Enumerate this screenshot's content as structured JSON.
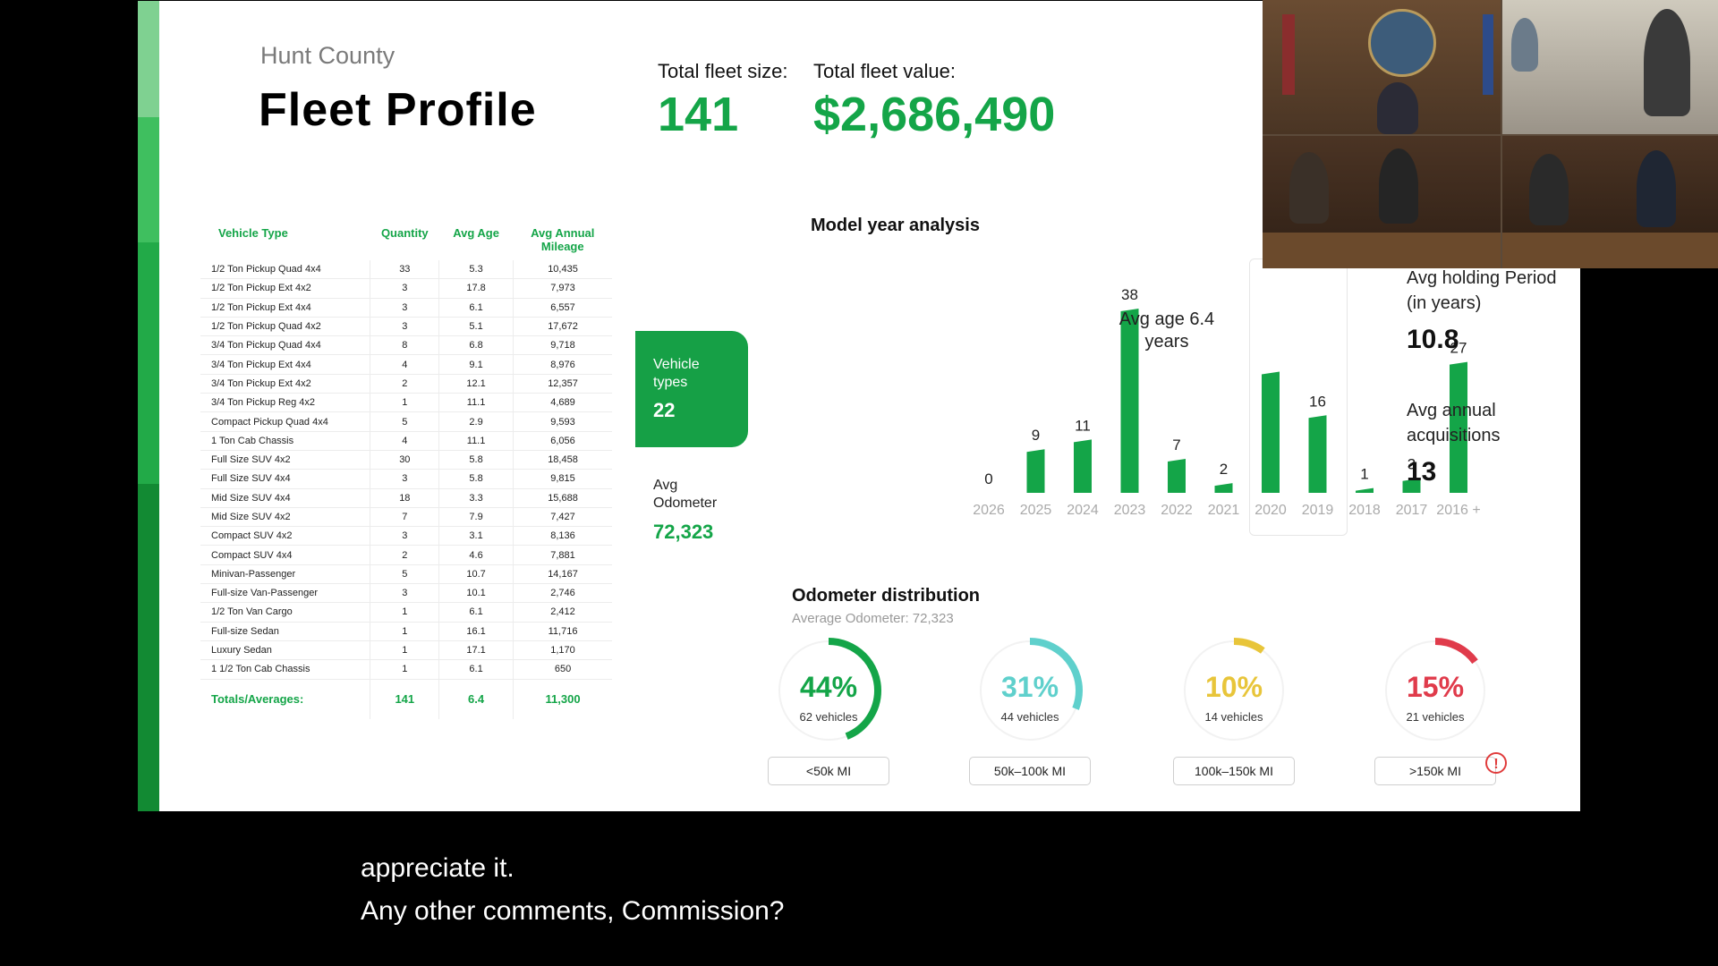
{
  "slide": {
    "county": "Hunt County",
    "title": "Fleet Profile",
    "fleet_size_label": "Total fleet size:",
    "fleet_size_value": "141",
    "fleet_value_label": "Total fleet value:",
    "fleet_value_value": "$2,686,490"
  },
  "table": {
    "headers": [
      "Vehicle Type",
      "Quantity",
      "Avg Age",
      "Avg Annual Mileage"
    ],
    "rows": [
      [
        "1/2 Ton Pickup Quad 4x4",
        "33",
        "5.3",
        "10,435"
      ],
      [
        "1/2 Ton Pickup Ext 4x2",
        "3",
        "17.8",
        "7,973"
      ],
      [
        "1/2 Ton Pickup Ext 4x4",
        "3",
        "6.1",
        "6,557"
      ],
      [
        "1/2 Ton Pickup Quad 4x2",
        "3",
        "5.1",
        "17,672"
      ],
      [
        "3/4 Ton Pickup Quad 4x4",
        "8",
        "6.8",
        "9,718"
      ],
      [
        "3/4 Ton Pickup Ext 4x4",
        "4",
        "9.1",
        "8,976"
      ],
      [
        "3/4 Ton Pickup Ext 4x2",
        "2",
        "12.1",
        "12,357"
      ],
      [
        "3/4 Ton Pickup Reg 4x2",
        "1",
        "11.1",
        "4,689"
      ],
      [
        "Compact Pickup Quad 4x4",
        "5",
        "2.9",
        "9,593"
      ],
      [
        "1 Ton Cab Chassis",
        "4",
        "11.1",
        "6,056"
      ],
      [
        "Full Size SUV 4x2",
        "30",
        "5.8",
        "18,458"
      ],
      [
        "Full Size SUV 4x4",
        "3",
        "5.8",
        "9,815"
      ],
      [
        "Mid Size SUV 4x4",
        "18",
        "3.3",
        "15,688"
      ],
      [
        "Mid Size SUV 4x2",
        "7",
        "7.9",
        "7,427"
      ],
      [
        "Compact SUV 4x2",
        "3",
        "3.1",
        "8,136"
      ],
      [
        "Compact SUV 4x4",
        "2",
        "4.6",
        "7,881"
      ],
      [
        "Minivan-Passenger",
        "5",
        "10.7",
        "14,167"
      ],
      [
        "Full-size Van-Passenger",
        "3",
        "10.1",
        "2,746"
      ],
      [
        "1/2 Ton Van Cargo",
        "1",
        "6.1",
        "2,412"
      ],
      [
        "Full-size Sedan",
        "1",
        "16.1",
        "11,716"
      ],
      [
        "Luxury Sedan",
        "1",
        "17.1",
        "1,170"
      ],
      [
        "1 1/2 Ton Cab Chassis",
        "1",
        "6.1",
        "650"
      ]
    ],
    "totals": [
      "Totals/Averages:",
      "141",
      "6.4",
      "11,300"
    ]
  },
  "stats": {
    "vehicle_types_label": "Vehicle types",
    "vehicle_types_value": "22",
    "avg_odometer_label": "Avg Odometer",
    "avg_odometer_value": "72,323",
    "holding_label": "Avg holding Period (in years)",
    "holding_value": "10.8",
    "acquisitions_label": "Avg annual acquisitions",
    "acquisitions_value": "13",
    "avg_age_label": "Avg age 6.4 years"
  },
  "chart_data": {
    "type": "bar",
    "title": "Model year analysis",
    "categories": [
      "2026",
      "2025",
      "2024",
      "2023",
      "2022",
      "2021",
      "2020",
      "2019",
      "2018",
      "2017",
      "2016 +"
    ],
    "values": [
      0,
      9,
      11,
      38,
      7,
      2,
      25,
      16,
      1,
      3,
      27
    ],
    "labels": [
      "0",
      "9",
      "11",
      "38",
      "7",
      "2",
      "",
      "16",
      "1",
      "3",
      "27"
    ],
    "ylim": [
      0,
      38
    ],
    "color": "#14a548",
    "grid": false
  },
  "odometer": {
    "title": "Odometer distribution",
    "subtitle": "Average Odometer: 72,323",
    "gauges": [
      {
        "pct": "44%",
        "fraction": 0.44,
        "vehicles": "62 vehicles",
        "range": "<50k MI",
        "color": "#14a548"
      },
      {
        "pct": "31%",
        "fraction": 0.31,
        "vehicles": "44 vehicles",
        "range": "50k–100k MI",
        "color": "#5fd0cc"
      },
      {
        "pct": "10%",
        "fraction": 0.1,
        "vehicles": "14 vehicles",
        "range": "100k–150k MI",
        "color": "#e8c53a"
      },
      {
        "pct": "15%",
        "fraction": 0.15,
        "vehicles": "21 vehicles",
        "range": ">150k MI",
        "color": "#e03b4b"
      }
    ],
    "warn_icon": "!"
  },
  "captions": {
    "line1": "appreciate it.",
    "line2": "Any other comments, Commission?"
  }
}
